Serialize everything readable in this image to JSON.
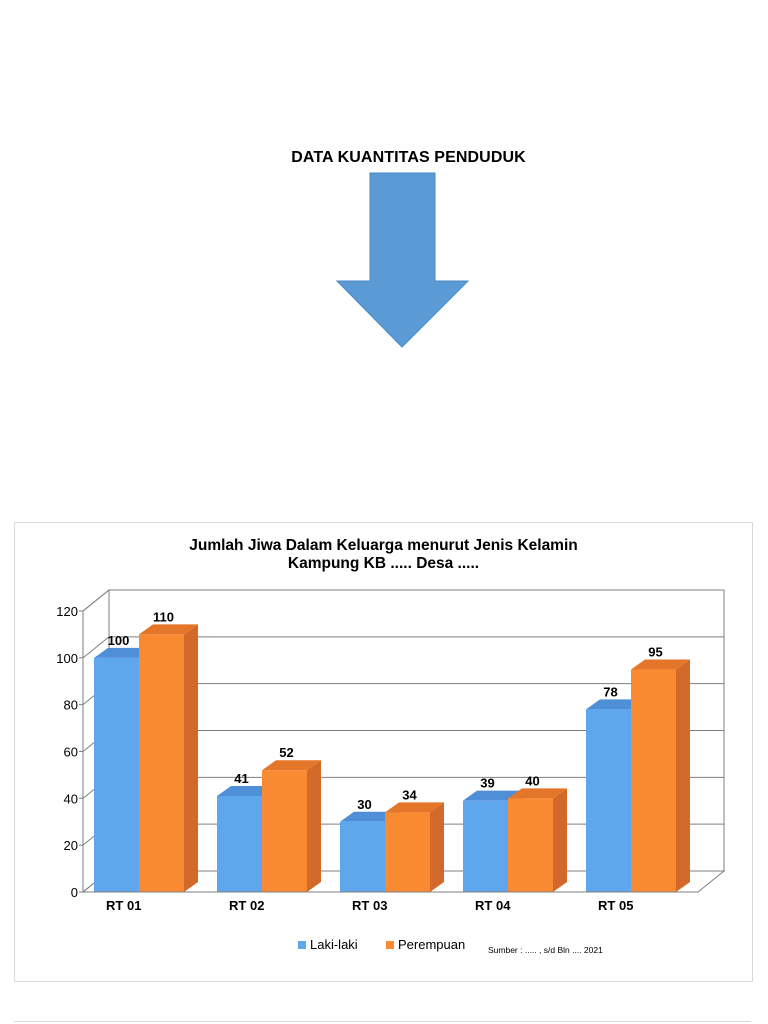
{
  "page": {
    "heading": "DATA KUANTITAS PENDUDUK",
    "arrow_color": "#5b9bd5"
  },
  "chart_data": {
    "type": "bar",
    "title_lines": [
      "Jumlah Jiwa Dalam Keluarga menurut Jenis Kelamin",
      "Kampung KB ..... Desa ....."
    ],
    "categories": [
      "RT 01",
      "RT 02",
      "RT 03",
      "RT 04",
      "RT 05"
    ],
    "series": [
      {
        "name": "Laki-laki",
        "values": [
          100,
          41,
          30,
          39,
          78
        ],
        "color": "#5fa7ec"
      },
      {
        "name": "Perempuan",
        "values": [
          110,
          52,
          34,
          40,
          95
        ],
        "color": "#f98a31"
      }
    ],
    "ylim": [
      0,
      120
    ],
    "yticks": [
      0,
      20,
      40,
      60,
      80,
      100,
      120
    ],
    "grid": true,
    "three_d": true,
    "data_labels": true,
    "legend_position": "bottom",
    "source_note": "Sumber : ..... , s/d Bln .... 2021"
  }
}
